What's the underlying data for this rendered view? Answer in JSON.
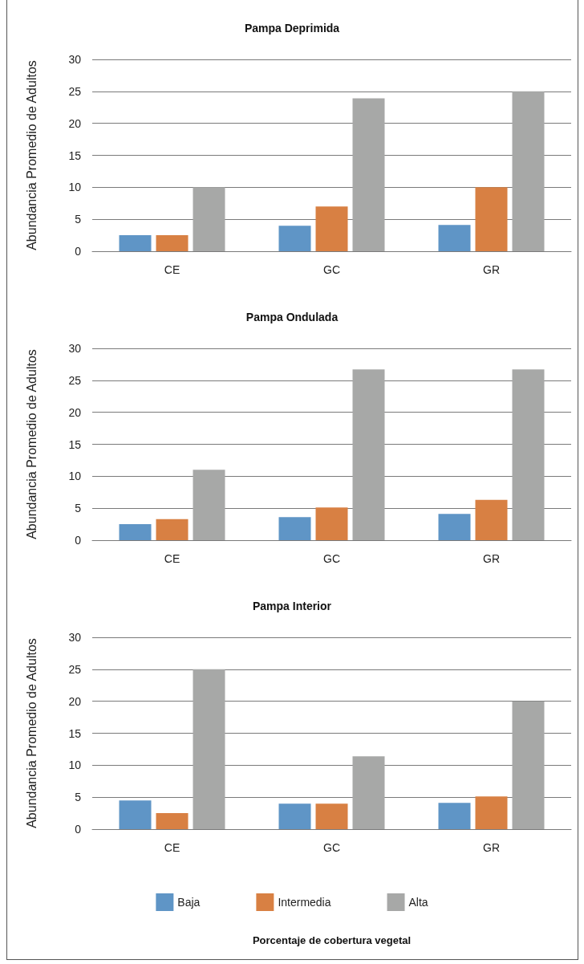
{
  "chart_data": [
    {
      "type": "bar",
      "title": "Pampa Deprimida",
      "ylabel": "Abundancia Promedio de Adultos",
      "categories": [
        "CE",
        "GC",
        "GR"
      ],
      "series": [
        {
          "color": "#5f95c6",
          "values": [
            2.5,
            4.0,
            4.1
          ]
        },
        {
          "color": "#d88043",
          "values": [
            2.5,
            7.0,
            10.0
          ]
        },
        {
          "color": "#a7a8a7",
          "values": [
            10.0,
            23.9,
            25.0
          ]
        }
      ],
      "ylim": [
        0,
        30
      ],
      "yticks": [
        0,
        5,
        10,
        15,
        20,
        25,
        30
      ],
      "grid": "y"
    },
    {
      "type": "bar",
      "title": "Pampa Ondulada",
      "ylabel": "Abundancia Promedio de Adultos",
      "categories": [
        "CE",
        "GC",
        "GR"
      ],
      "series": [
        {
          "color": "#5f95c6",
          "values": [
            2.5,
            3.6,
            4.1
          ]
        },
        {
          "color": "#d88043",
          "values": [
            3.3,
            5.1,
            6.3
          ]
        },
        {
          "color": "#a7a8a7",
          "values": [
            11.0,
            26.7,
            26.7
          ]
        }
      ],
      "ylim": [
        0,
        30
      ],
      "yticks": [
        0,
        5,
        10,
        15,
        20,
        25,
        30
      ],
      "grid": "y"
    },
    {
      "type": "bar",
      "title": "Pampa Interior",
      "ylabel": "Abundancia Promedio de Adultos",
      "xlabel": "Porcentaje de cobertura vegetal",
      "categories": [
        "CE",
        "GC",
        "GR"
      ],
      "series": [
        {
          "name": "Baja",
          "color": "#5f95c6",
          "values": [
            4.5,
            4.0,
            4.1
          ]
        },
        {
          "name": "Intermedia",
          "color": "#d88043",
          "values": [
            2.5,
            4.0,
            5.1
          ]
        },
        {
          "name": "Alta",
          "color": "#a7a8a7",
          "values": [
            25.0,
            11.4,
            20.0
          ]
        }
      ],
      "ylim": [
        0,
        30
      ],
      "yticks": [
        0,
        5,
        10,
        15,
        20,
        25,
        30
      ],
      "grid": "y",
      "legend": "bottom"
    }
  ]
}
